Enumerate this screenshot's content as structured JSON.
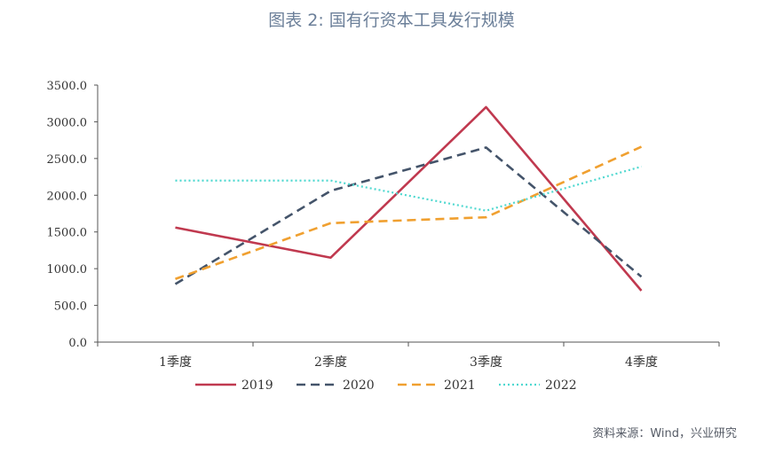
{
  "title": "图表 2:   国有行资本工具发行规模",
  "source": "资料来源：Wind，兴业研究",
  "chart_data": {
    "type": "line",
    "categories": [
      "1季度",
      "2季度",
      "3季度",
      "4季度"
    ],
    "ylim": [
      0,
      3500
    ],
    "yticks": [
      "0.0",
      "500.0",
      "1000.0",
      "1500.0",
      "2000.0",
      "2500.0",
      "3000.0",
      "3500.0"
    ],
    "ytick_values": [
      0,
      500,
      1000,
      1500,
      2000,
      2500,
      3000,
      3500
    ],
    "grid": false,
    "legend_position": "bottom",
    "series": [
      {
        "name": "2019",
        "values": [
          1560,
          1150,
          3200,
          700
        ],
        "color": "#c0394f",
        "style": "solid"
      },
      {
        "name": "2020",
        "values": [
          790,
          2060,
          2650,
          890
        ],
        "color": "#44546a",
        "style": "dashed"
      },
      {
        "name": "2021",
        "values": [
          860,
          1620,
          1700,
          2660
        ],
        "color": "#f0a030",
        "style": "dashed"
      },
      {
        "name": "2022",
        "values": [
          2200,
          2200,
          1790,
          2390
        ],
        "color": "#4fd8d0",
        "style": "dotted"
      }
    ]
  }
}
